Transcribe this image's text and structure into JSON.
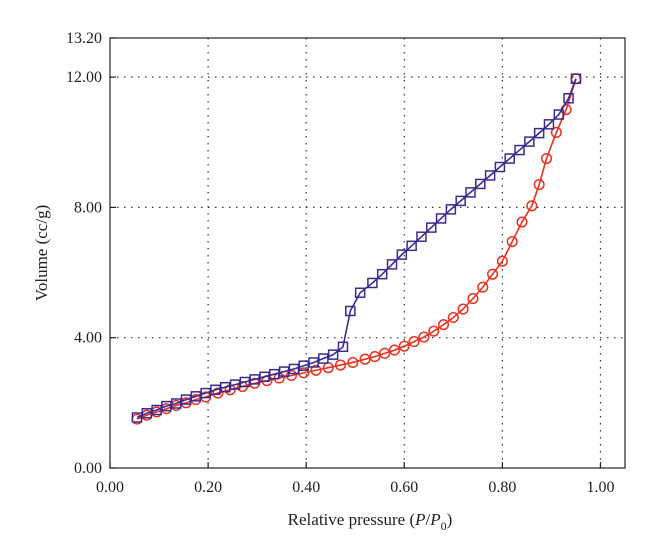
{
  "chart_data": {
    "type": "scatter",
    "xlabel_prefix": "Relative pressure (",
    "xlabel_p": "P",
    "xlabel_slash": "/",
    "xlabel_p0": "P",
    "xlabel_sub": "0",
    "xlabel_suffix": ")",
    "ylabel": "Volume (cc/g)",
    "xlim": [
      0.0,
      1.05
    ],
    "ylim": [
      0.0,
      13.2
    ],
    "x_ticks": [
      {
        "value": 0.0,
        "label": "0.00"
      },
      {
        "value": 0.2,
        "label": "0.20"
      },
      {
        "value": 0.4,
        "label": "0.40"
      },
      {
        "value": 0.6,
        "label": "0.60"
      },
      {
        "value": 0.8,
        "label": "0.80"
      },
      {
        "value": 1.0,
        "label": "1.00"
      }
    ],
    "y_ticks": [
      {
        "value": 0.0,
        "label": "0.00"
      },
      {
        "value": 4.0,
        "label": "4.00"
      },
      {
        "value": 8.0,
        "label": "8.00"
      },
      {
        "value": 12.0,
        "label": "12.00"
      },
      {
        "value": 13.2,
        "label": "13.20"
      }
    ],
    "grid": true,
    "series": [
      {
        "marker": "circle",
        "color": "#e8321e",
        "x": [
          0.055,
          0.075,
          0.095,
          0.115,
          0.135,
          0.155,
          0.175,
          0.195,
          0.22,
          0.245,
          0.27,
          0.295,
          0.32,
          0.345,
          0.37,
          0.395,
          0.42,
          0.445,
          0.47,
          0.495,
          0.52,
          0.54,
          0.56,
          0.58,
          0.6,
          0.62,
          0.64,
          0.66,
          0.68,
          0.7,
          0.72,
          0.74,
          0.76,
          0.78,
          0.8,
          0.82,
          0.84,
          0.86,
          0.875,
          0.89,
          0.91,
          0.93,
          0.95
        ],
        "y": [
          1.5,
          1.62,
          1.72,
          1.82,
          1.92,
          2.0,
          2.1,
          2.18,
          2.3,
          2.4,
          2.5,
          2.6,
          2.68,
          2.76,
          2.84,
          2.92,
          3.0,
          3.08,
          3.16,
          3.24,
          3.34,
          3.42,
          3.52,
          3.62,
          3.74,
          3.88,
          4.02,
          4.2,
          4.4,
          4.62,
          4.88,
          5.2,
          5.55,
          5.95,
          6.35,
          6.95,
          7.55,
          8.05,
          8.7,
          9.5,
          10.3,
          11.0,
          11.95
        ]
      },
      {
        "marker": "square",
        "color": "#3b2a8f",
        "x": [
          0.055,
          0.075,
          0.095,
          0.115,
          0.135,
          0.155,
          0.175,
          0.195,
          0.215,
          0.235,
          0.255,
          0.275,
          0.295,
          0.315,
          0.335,
          0.355,
          0.375,
          0.395,
          0.415,
          0.435,
          0.455,
          0.475,
          0.49,
          0.51,
          0.535,
          0.555,
          0.575,
          0.595,
          0.615,
          0.635,
          0.655,
          0.675,
          0.695,
          0.715,
          0.735,
          0.755,
          0.775,
          0.795,
          0.815,
          0.835,
          0.855,
          0.875,
          0.895,
          0.915,
          0.935,
          0.95
        ],
        "y": [
          1.55,
          1.68,
          1.78,
          1.9,
          1.98,
          2.1,
          2.2,
          2.3,
          2.4,
          2.48,
          2.56,
          2.64,
          2.72,
          2.8,
          2.88,
          2.96,
          3.04,
          3.14,
          3.24,
          3.36,
          3.48,
          3.72,
          4.82,
          5.38,
          5.68,
          5.95,
          6.25,
          6.55,
          6.82,
          7.1,
          7.38,
          7.66,
          7.94,
          8.2,
          8.46,
          8.72,
          8.98,
          9.24,
          9.5,
          9.76,
          10.02,
          10.28,
          10.55,
          10.85,
          11.35,
          11.95
        ]
      }
    ]
  }
}
